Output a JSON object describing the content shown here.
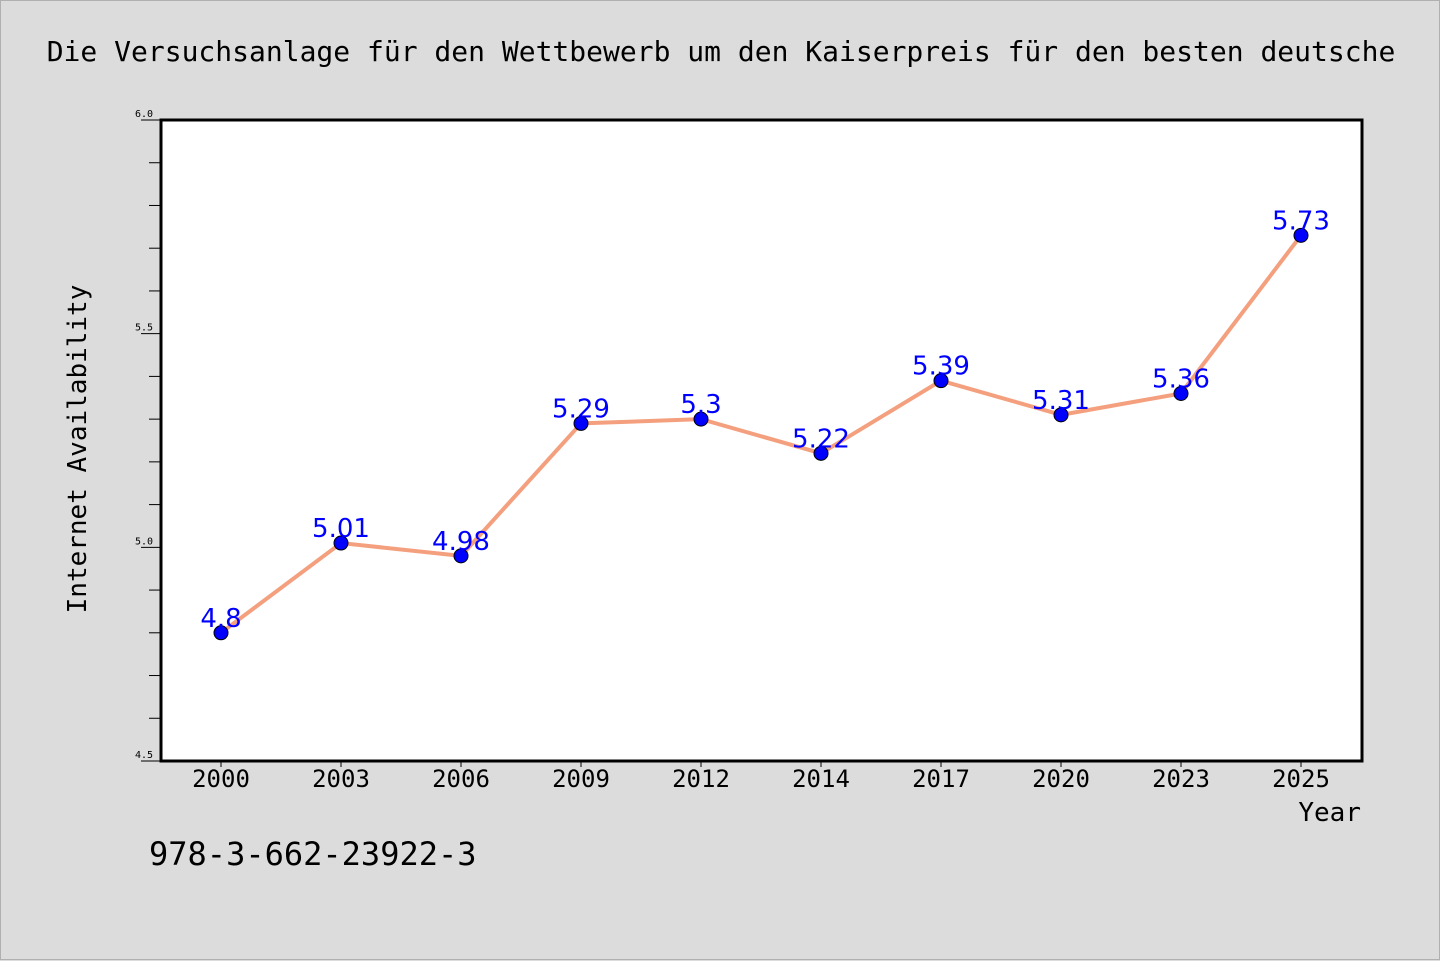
{
  "chart_data": {
    "type": "line",
    "title": "Die Versuchsanlage für den Wettbewerb um den Kaiserpreis für den besten deutsche",
    "xlabel": "Year",
    "ylabel": "Internet Availability",
    "categories": [
      "2000",
      "2003",
      "2006",
      "2009",
      "2012",
      "2014",
      "2017",
      "2020",
      "2023",
      "2025"
    ],
    "series": [
      {
        "values": [
          4.8,
          5.01,
          4.98,
          5.29,
          5.3,
          5.22,
          5.39,
          5.31,
          5.36,
          5.73
        ],
        "data_labels": [
          "4.8",
          "5.01",
          "4.98",
          "5.29",
          "5.3",
          "5.22",
          "5.39",
          "5.31",
          "5.36",
          "5.73"
        ],
        "line_color": "#f4a07e",
        "marker_color": "#0000ff",
        "label_color": "#0000ff"
      }
    ],
    "ylim": [
      4.5,
      6.0
    ],
    "y_ticks": [
      "4.5",
      "5.0",
      "5.5",
      "6.0"
    ],
    "y_minor_tick_step": 0.1,
    "grid": false,
    "legend": "none",
    "background_color": "#dcdcdc",
    "plot_background_color": "#ffffff"
  },
  "annotation": {
    "text": "978-3-662-23922-3"
  }
}
